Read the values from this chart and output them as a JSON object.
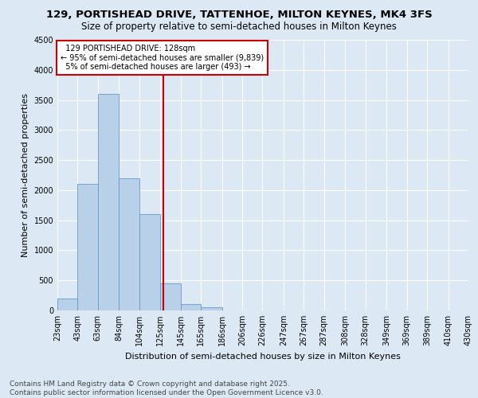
{
  "title_line1": "129, PORTISHEAD DRIVE, TATTENHOE, MILTON KEYNES, MK4 3FS",
  "title_line2": "Size of property relative to semi-detached houses in Milton Keynes",
  "xlabel": "Distribution of semi-detached houses by size in Milton Keynes",
  "ylabel": "Number of semi-detached properties",
  "footer": "Contains HM Land Registry data © Crown copyright and database right 2025.\nContains public sector information licensed under the Open Government Licence v3.0.",
  "bin_edges": [
    23,
    43,
    63,
    84,
    104,
    125,
    145,
    165,
    186,
    206,
    226,
    247,
    267,
    287,
    308,
    328,
    349,
    369,
    389,
    410,
    430
  ],
  "bar_heights": [
    200,
    2100,
    3600,
    2200,
    1600,
    450,
    100,
    50,
    0,
    0,
    0,
    0,
    0,
    0,
    0,
    0,
    0,
    0,
    0,
    0
  ],
  "bar_color": "#B8D0E8",
  "bar_edge_color": "#6699CC",
  "highlight_value": 128,
  "highlight_line_color": "#CC0000",
  "annotation_text_line1": "129 PORTISHEAD DRIVE: 128sqm",
  "annotation_text_line2": "← 95% of semi-detached houses are smaller (9,839)",
  "annotation_text_line3": "5% of semi-detached houses are larger (493) →",
  "annotation_box_color": "#CC0000",
  "ylim": [
    0,
    4500
  ],
  "yticks": [
    0,
    500,
    1000,
    1500,
    2000,
    2500,
    3000,
    3500,
    4000,
    4500
  ],
  "bg_color": "#DCE9F5",
  "plot_bg_color": "#DCE9F5",
  "grid_color": "#FFFFFF",
  "title_fontsize": 9.5,
  "subtitle_fontsize": 8.5,
  "axis_label_fontsize": 8,
  "tick_fontsize": 7,
  "annotation_fontsize": 7,
  "footer_fontsize": 6.5
}
